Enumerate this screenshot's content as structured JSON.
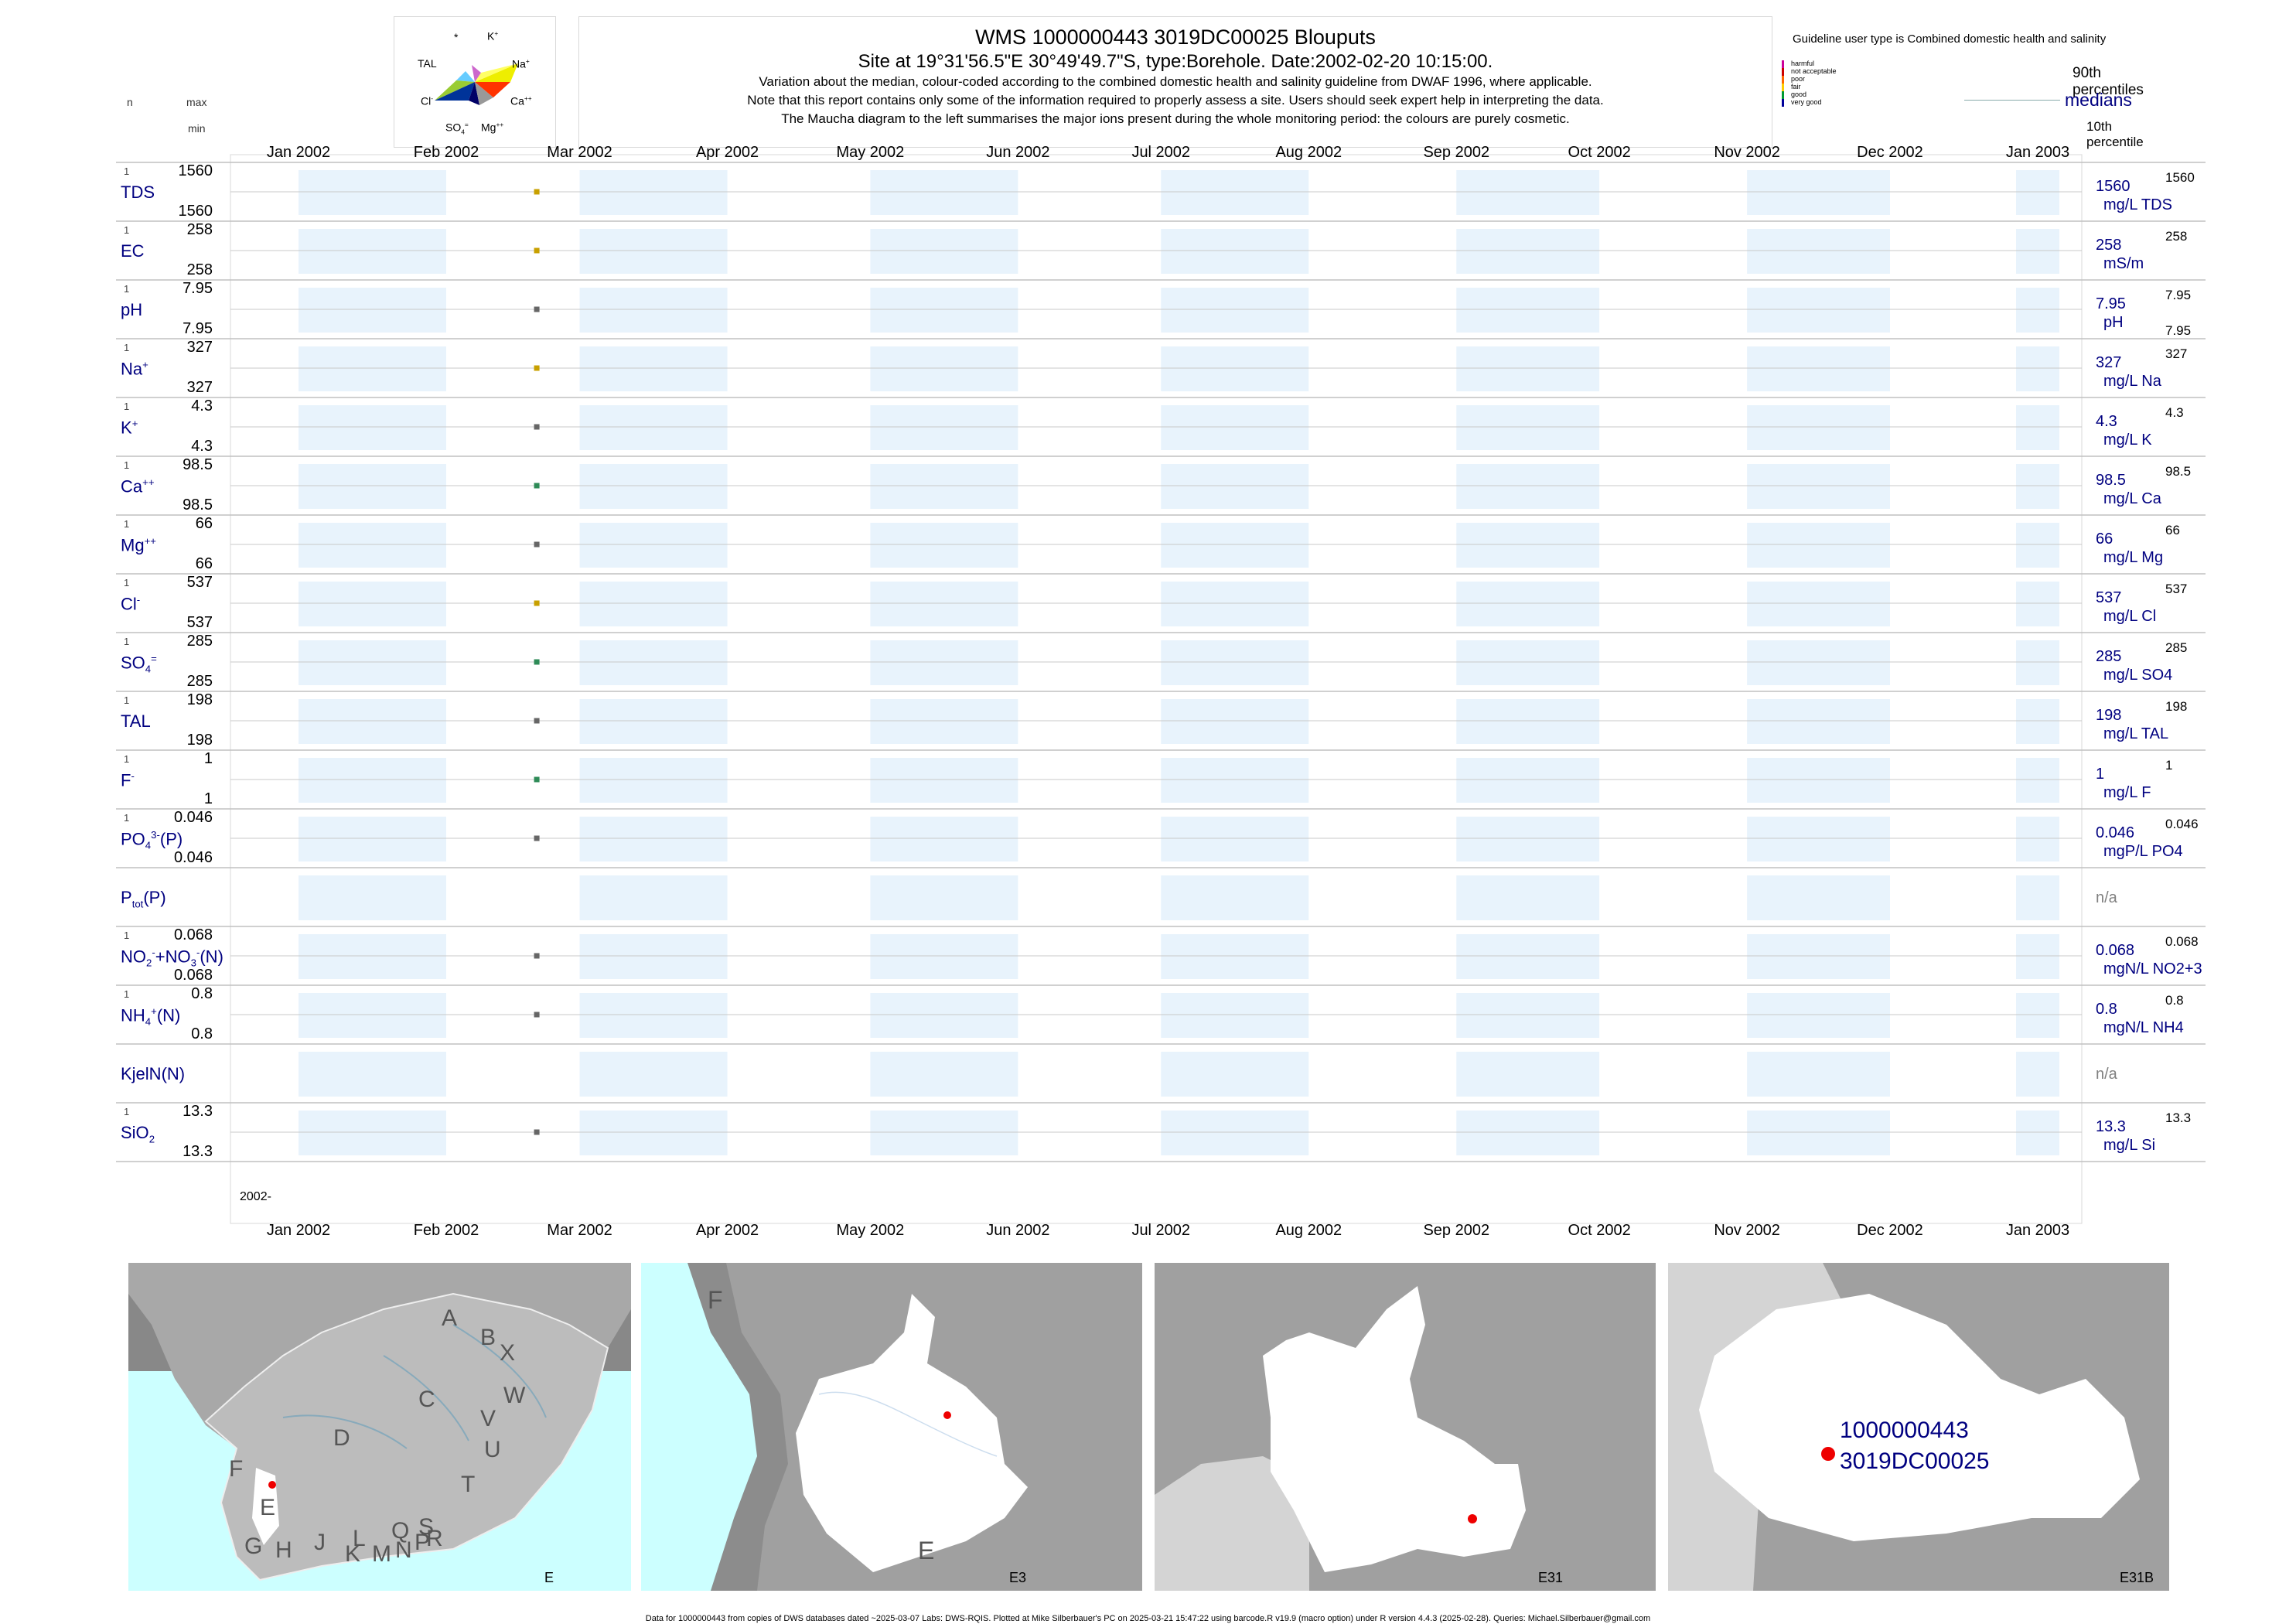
{
  "header": {
    "title": "WMS 1000000443 3019DC00025 Blouputs",
    "subtitle": "Site at 19°31'56.5\"E 30°49'49.7\"S, type:Borehole. Date:2002-02-20 10:15:00.",
    "line1": "Variation about the median,  colour-coded according to the combined domestic health and salinity guideline from DWAF 1996, where applicable.",
    "line2": "Note that this report contains only some of the information required to properly assess a site. Users should seek expert help in interpreting the data.",
    "line3": "The Maucha diagram to the left summarises the major ions present during the whole monitoring period: the colours are purely cosmetic.",
    "col_n": "n",
    "col_max": "max",
    "col_min": "min"
  },
  "maucha": {
    "star": "*",
    "k": "K",
    "k_sup": "+",
    "tal": "TAL",
    "na": "Na",
    "na_sup": "+",
    "cl": "Cl",
    "cl_sup": "-",
    "ca": "Ca",
    "ca_sup": "++",
    "so4": "SO",
    "so4_sub": "4",
    "so4_sup": "=",
    "mg": "Mg",
    "mg_sup": "++"
  },
  "legend": {
    "guideline": "Guideline user type is Combined domestic health and salinity",
    "classes": [
      {
        "label": "harmful",
        "color": "#cc0099"
      },
      {
        "label": "not acceptable",
        "color": "#cc0000"
      },
      {
        "label": "poor",
        "color": "#ff6600"
      },
      {
        "label": "fair",
        "color": "#ffcc00"
      },
      {
        "label": "good",
        "color": "#009933"
      },
      {
        "label": "very good",
        "color": "#000099"
      }
    ],
    "p90": "90th percentiles",
    "medians": "medians",
    "p10": "10th percentile"
  },
  "chart_data": {
    "type": "scatter",
    "x_range": [
      "2002-01-01",
      "2003-01-01"
    ],
    "months": [
      "Jan 2002",
      "Feb 2002",
      "Mar 2002",
      "Apr 2002",
      "May 2002",
      "Jun 2002",
      "Jul 2002",
      "Aug 2002",
      "Sep 2002",
      "Oct 2002",
      "Nov 2002",
      "Dec 2002",
      "Jan 2003"
    ],
    "year_label": "2002-",
    "sample_date": "2002-02-20",
    "series": [
      {
        "name": "TDS",
        "n": "1",
        "max": "1560",
        "min": "1560",
        "median": "1560",
        "unit": "mg/L TDS",
        "p90": "1560",
        "p10": "",
        "value": 1560,
        "color": "#c8a000"
      },
      {
        "name": "EC",
        "n": "1",
        "max": "258",
        "min": "258",
        "median": "258",
        "unit": "mS/m",
        "p90": "258",
        "p10": "",
        "value": 258,
        "color": "#c8a000"
      },
      {
        "name": "pH",
        "n": "1",
        "max": "7.95",
        "min": "7.95",
        "median": "7.95",
        "unit": "pH",
        "p90": "7.95",
        "p10": "7.95",
        "value": 7.95,
        "color": "#666666"
      },
      {
        "name": "Na",
        "sup": "+",
        "n": "1",
        "max": "327",
        "min": "327",
        "median": "327",
        "unit": "mg/L Na",
        "p90": "327",
        "p10": "",
        "value": 327,
        "color": "#c8a000"
      },
      {
        "name": "K",
        "sup": "+",
        "n": "1",
        "max": "4.3",
        "min": "4.3",
        "median": "4.3",
        "unit": "mg/L K",
        "p90": "4.3",
        "p10": "",
        "value": 4.3,
        "color": "#666666"
      },
      {
        "name": "Ca",
        "sup": "++",
        "n": "1",
        "max": "98.5",
        "min": "98.5",
        "median": "98.5",
        "unit": "mg/L Ca",
        "p90": "98.5",
        "p10": "",
        "value": 98.5,
        "color": "#2e8b57"
      },
      {
        "name": "Mg",
        "sup": "++",
        "n": "1",
        "max": "66",
        "min": "66",
        "median": "66",
        "unit": "mg/L Mg",
        "p90": "66",
        "p10": "",
        "value": 66,
        "color": "#666666"
      },
      {
        "name": "Cl",
        "sup": "-",
        "n": "1",
        "max": "537",
        "min": "537",
        "median": "537",
        "unit": "mg/L Cl",
        "p90": "537",
        "p10": "",
        "value": 537,
        "color": "#c8a000"
      },
      {
        "name": "SO",
        "sub": "4",
        "sup": "=",
        "n": "1",
        "max": "285",
        "min": "285",
        "median": "285",
        "unit": "mg/L SO4",
        "p90": "285",
        "p10": "",
        "value": 285,
        "color": "#2e8b57"
      },
      {
        "name": "TAL",
        "n": "1",
        "max": "198",
        "min": "198",
        "median": "198",
        "unit": "mg/L TAL",
        "p90": "198",
        "p10": "",
        "value": 198,
        "color": "#666666"
      },
      {
        "name": "F",
        "sup": "-",
        "n": "1",
        "max": "1",
        "min": "1",
        "median": "1",
        "unit": "mg/L F",
        "p90": "1",
        "p10": "",
        "value": 1,
        "color": "#2e8b57"
      },
      {
        "name": "PO",
        "sub": "4",
        "sup": "3-",
        "suffix": "(P)",
        "n": "1",
        "max": "0.046",
        "min": "0.046",
        "median": "0.046",
        "unit": "mgP/L PO4",
        "p90": "0.046",
        "p10": "",
        "value": 0.046,
        "color": "#666666"
      },
      {
        "name": "P",
        "sub": "tot",
        "suffix": "(P)",
        "n": "",
        "max": "",
        "min": "",
        "median": "",
        "unit": "",
        "p90": "",
        "p10": "",
        "na": "n/a",
        "value": null,
        "color": "#666666"
      },
      {
        "name": "NO",
        "sub": "2",
        "sup": "-",
        "suffix": "+NO",
        "sub2": "3",
        "sup2": "-",
        "suffix2": "(N)",
        "n": "1",
        "max": "0.068",
        "min": "0.068",
        "median": "0.068",
        "unit": "mgN/L NO2+3",
        "p90": "0.068",
        "p10": "",
        "value": 0.068,
        "color": "#666666"
      },
      {
        "name": "NH",
        "sub": "4",
        "sup": "+",
        "suffix": "(N)",
        "n": "1",
        "max": "0.8",
        "min": "0.8",
        "median": "0.8",
        "unit": "mgN/L NH4",
        "p90": "0.8",
        "p10": "",
        "value": 0.8,
        "color": "#666666"
      },
      {
        "name": "KjelN(N)",
        "n": "",
        "max": "",
        "min": "",
        "median": "",
        "unit": "",
        "p90": "",
        "p10": "",
        "na": "n/a",
        "value": null,
        "color": "#666666"
      },
      {
        "name": "SiO",
        "sub": "2",
        "n": "1",
        "max": "13.3",
        "min": "13.3",
        "median": "13.3",
        "unit": "mg/L Si",
        "p90": "13.3",
        "p10": "",
        "value": 13.3,
        "color": "#666666"
      }
    ]
  },
  "maps": {
    "panels": [
      {
        "label": "E",
        "drainage": [
          "A",
          "B",
          "X",
          "W",
          "C",
          "V",
          "U",
          "T",
          "D",
          "F",
          "E",
          "G",
          "H",
          "J",
          "K",
          "L",
          "M",
          "N",
          "P",
          "Q",
          "R",
          "S"
        ]
      },
      {
        "label": "E3",
        "drainage": [
          "F",
          "E"
        ]
      },
      {
        "label": "E31",
        "drainage": []
      },
      {
        "label": "E31B",
        "site_id": "1000000443",
        "site_code": "3019DC00025"
      }
    ]
  },
  "footer": "Data for 1000000443 from copies of DWS databases dated ~2025-03-07 Labs: DWS-RQIS. Plotted at Mike Silberbauer's PC on 2025-03-21 15:47:22 using barcode.R v19.9 (macro option) under R version 4.4.3 (2025-02-28). Queries: Michael.Silberbauer@gmail.com"
}
